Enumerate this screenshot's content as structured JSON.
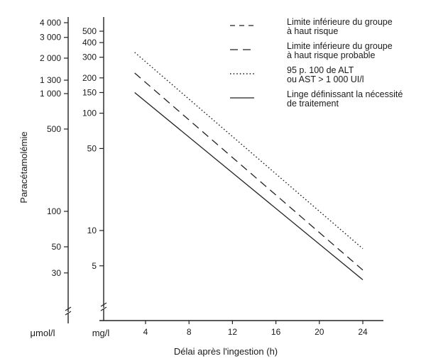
{
  "chart_data": {
    "type": "line",
    "xlabel": "Délai après l'ingestion (h)",
    "ylabel": "Paracétamolémie",
    "x_ticks": [
      "4",
      "8",
      "12",
      "16",
      "20",
      "24"
    ],
    "xlim": [
      0,
      26
    ],
    "y_scale": "log",
    "y_axes": [
      {
        "unit": "μmol/l",
        "ticks": [
          "4 000",
          "3 000",
          "2 000",
          "1 300",
          "1 000",
          "500",
          "100",
          "50",
          "30"
        ]
      },
      {
        "unit": "mg/l",
        "ticks": [
          "500",
          "400",
          "300",
          "200",
          "150",
          "100",
          "50",
          "10",
          "5"
        ]
      }
    ],
    "grid": false,
    "legend_position": "top-right",
    "series": [
      {
        "name": "Limite inférieure du groupe à haut risque",
        "style": "dashed-short",
        "x": [
          4,
          24
        ],
        "y_mg_l": [
          null,
          null
        ]
      },
      {
        "name": "Limite inférieure du groupe à haut risque probable",
        "style": "dashed-long",
        "x": [
          3,
          24
        ],
        "y_mg_l": [
          220,
          4.6
        ]
      },
      {
        "name": "95 p. 100 de ALT ou AST > 1 000 UI/l",
        "style": "dotted",
        "x": [
          3,
          24
        ],
        "y_mg_l": [
          330,
          7
        ]
      },
      {
        "name": "Linge définissant la nécessité de traitement",
        "style": "solid",
        "x": [
          3,
          24
        ],
        "y_mg_l": [
          150,
          3.8
        ]
      }
    ],
    "legend": [
      {
        "lines": [
          "Limite inférieure du groupe",
          "à haut risque"
        ],
        "style": "dashed-short"
      },
      {
        "lines": [
          "Limite inférieure du groupe",
          "à haut risque probable"
        ],
        "style": "dashed-long"
      },
      {
        "lines": [
          "95 p. 100 de ALT",
          "ou AST > 1 000 UI/l"
        ],
        "style": "dotted"
      },
      {
        "lines": [
          "Linge définissant la nécessité",
          "de traitement"
        ],
        "style": "solid"
      }
    ]
  }
}
